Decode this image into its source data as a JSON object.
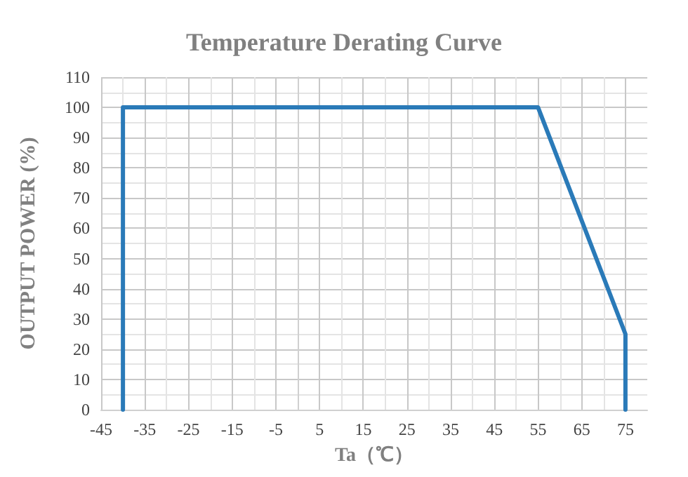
{
  "chart_data": {
    "type": "line",
    "title": "Temperature Derating Curve",
    "xlabel": "Ta（℃）",
    "ylabel": "OUTPUT POWER (%)",
    "x": [
      -40,
      -40,
      55,
      75,
      75
    ],
    "series": [
      {
        "color": "#2a7ab8",
        "values": [
          0,
          100,
          100,
          25,
          0
        ]
      }
    ],
    "xlim": [
      -45,
      80
    ],
    "xticks": [
      -45,
      -35,
      -25,
      -15,
      -5,
      5,
      15,
      25,
      35,
      45,
      55,
      65,
      75
    ],
    "ylim": [
      0,
      110
    ],
    "yticks": [
      0,
      10,
      20,
      30,
      40,
      50,
      60,
      70,
      80,
      90,
      100,
      110
    ],
    "grid": true,
    "marker": "none",
    "line_style": "solid"
  }
}
